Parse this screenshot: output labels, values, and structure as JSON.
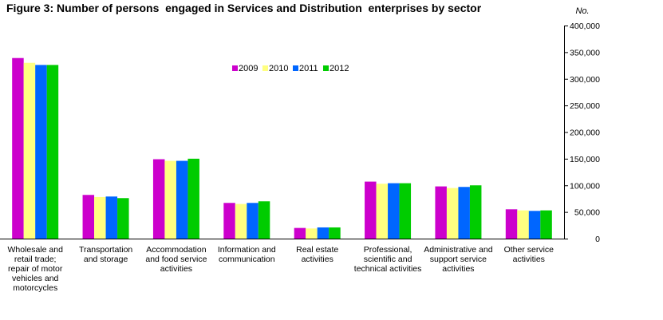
{
  "chart_data": {
    "type": "bar",
    "title": "Figure 3: Number of persons  engaged in Services and Distribution  enterprises by sector",
    "ylabel": "No.",
    "ylim": [
      0,
      400000
    ],
    "yticks": [
      0,
      50000,
      100000,
      150000,
      200000,
      250000,
      300000,
      350000,
      400000
    ],
    "ytick_labels": [
      "0",
      "50,000",
      "100,000",
      "150,000",
      "200,000",
      "250,000",
      "300,000",
      "350,000",
      "400,000"
    ],
    "y_axis_position": "right",
    "grid": false,
    "legend_position": "top-center",
    "categories": [
      [
        "Wholesale and",
        "retail trade;",
        "repair of motor",
        "vehicles and",
        "motorcycles"
      ],
      [
        "Transportation",
        "and storage"
      ],
      [
        "Accommodation",
        "and food service",
        "activities"
      ],
      [
        "Information and",
        "communication"
      ],
      [
        "Real estate",
        "activities"
      ],
      [
        "Professional,",
        "scientific and",
        "technical activities"
      ],
      [
        "Administrative and",
        "support service",
        "activities"
      ],
      [
        "Other service",
        "activities"
      ]
    ],
    "series": [
      {
        "name": "2009",
        "color": "#cc00cc",
        "values": [
          339000,
          82000,
          149000,
          67000,
          20000,
          107000,
          98000,
          55000
        ]
      },
      {
        "name": "2010",
        "color": "#ffff80",
        "values": [
          330000,
          78000,
          146000,
          65000,
          19000,
          103000,
          95000,
          53000
        ]
      },
      {
        "name": "2011",
        "color": "#0066ff",
        "values": [
          326000,
          79000,
          146000,
          67000,
          21000,
          104000,
          97000,
          52000
        ]
      },
      {
        "name": "2012",
        "color": "#00cc00",
        "values": [
          326000,
          76000,
          150000,
          70000,
          21000,
          104000,
          100000,
          53000
        ]
      }
    ]
  }
}
